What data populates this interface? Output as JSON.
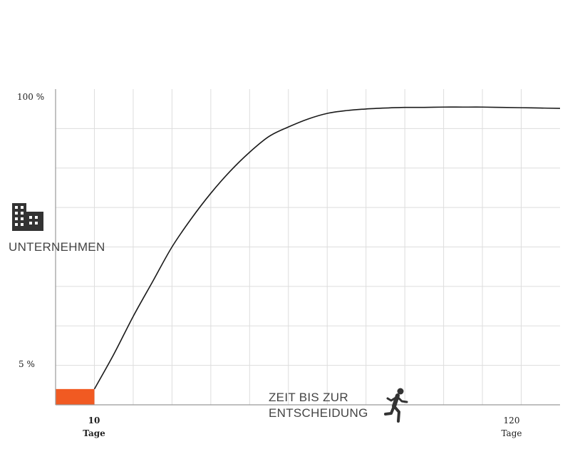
{
  "chart_data": {
    "type": "line",
    "title": "",
    "y_axis": {
      "label": "UNTERNEHMEN",
      "icon": "building-icon",
      "tick_labels": {
        "top": "100 %",
        "bottom": "5 %"
      },
      "ylim": [
        0,
        100
      ]
    },
    "x_axis": {
      "label_line1": "ZEIT  BIS ZUR",
      "label_line2": "ENTSCHEIDUNG",
      "icon": "running-person-icon",
      "tick_start": {
        "value": "10",
        "unit": "Tage"
      },
      "tick_end": {
        "value": "120",
        "unit": "Tage"
      },
      "xlim": [
        0,
        130
      ]
    },
    "grid": true,
    "highlight_block": {
      "x_from": 0,
      "x_to": 10,
      "y_from": 0,
      "y_to": 5,
      "color": "#f15a22"
    },
    "series": [
      {
        "color": "#1a1a1a",
        "x": [
          10,
          15,
          20,
          25,
          30,
          35,
          40,
          45,
          50,
          55,
          60,
          65,
          70,
          75,
          80,
          85,
          90,
          95,
          100,
          105,
          110,
          115,
          120,
          125,
          130
        ],
        "y": [
          5,
          16,
          28,
          39,
          50,
          59,
          67,
          74,
          80,
          85,
          88,
          90.5,
          92.3,
          93.2,
          93.7,
          94,
          94.2,
          94.2,
          94.3,
          94.3,
          94.3,
          94.2,
          94.1,
          94,
          93.9
        ]
      }
    ]
  }
}
